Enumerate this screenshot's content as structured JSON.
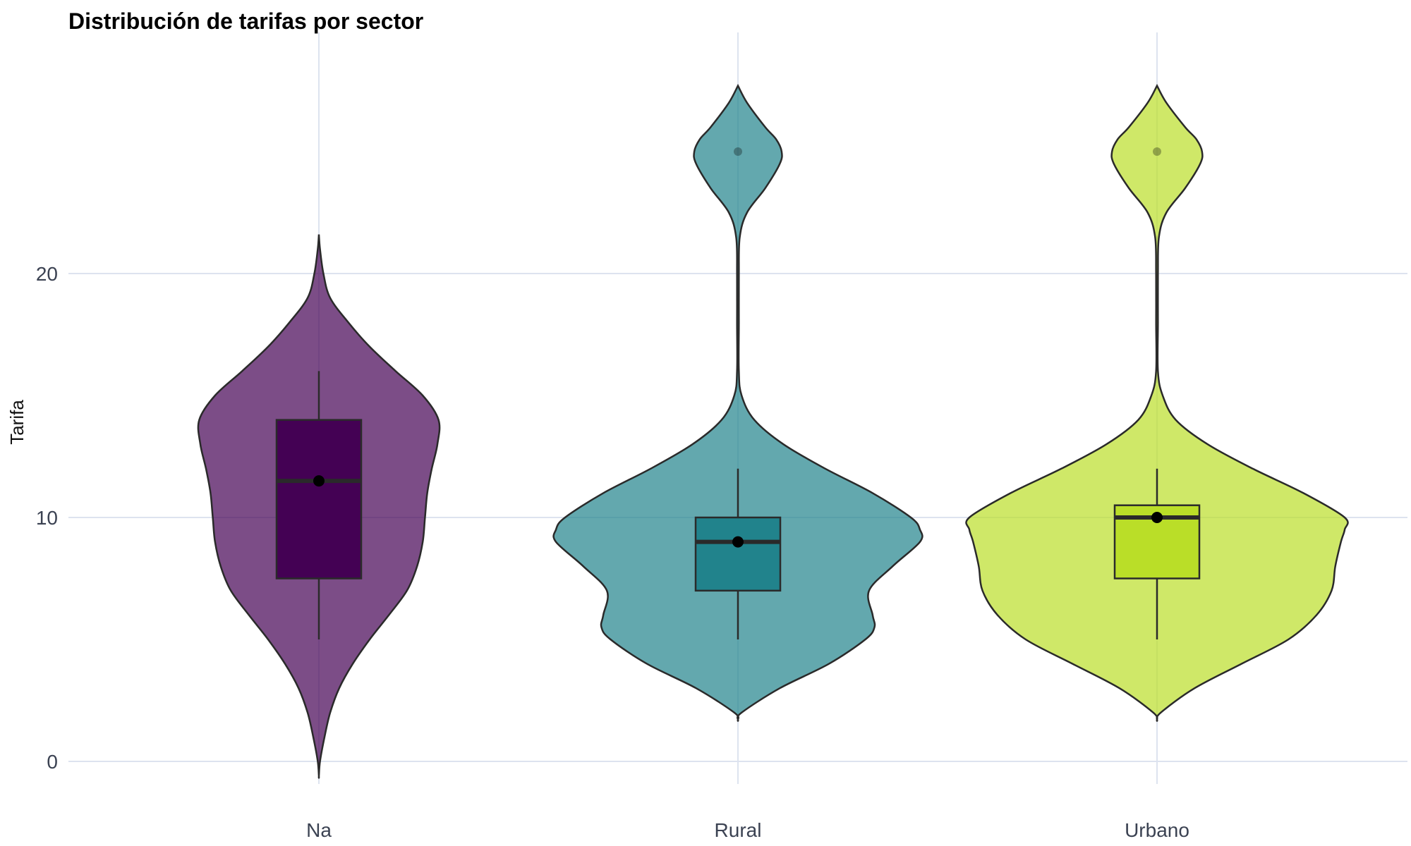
{
  "chart_data": {
    "type": "violin",
    "title": "Distribución de tarifas por sector",
    "xlabel": "",
    "ylabel": "Tarifa",
    "ylim": [
      -1.8,
      29.8
    ],
    "yticks": [
      0,
      10,
      20
    ],
    "grid": true,
    "categories": [
      "Na",
      "Rural",
      "Urbano"
    ],
    "colors": {
      "Na": "#440154",
      "Rural": "#21838c",
      "Urbano": "#bade28"
    },
    "series": [
      {
        "category": "Na",
        "box": {
          "min": 5,
          "q1": 7.5,
          "median": 11.5,
          "q3": 14,
          "max": 16
        },
        "mean": 11.5,
        "outliers": [],
        "violin": {
          "y": [
            -0.6,
            0,
            1,
            2,
            3,
            4,
            5,
            6,
            7,
            8,
            9,
            10,
            11,
            12,
            13,
            14,
            15,
            16,
            17,
            18,
            19,
            20,
            21,
            21.6
          ],
          "width": [
            0,
            0.01,
            0.05,
            0.1,
            0.18,
            0.3,
            0.45,
            0.62,
            0.78,
            0.87,
            0.92,
            0.94,
            0.96,
            1.0,
            1.05,
            1.06,
            0.92,
            0.68,
            0.45,
            0.26,
            0.1,
            0.04,
            0.01,
            0
          ]
        }
      },
      {
        "category": "Rural",
        "box": {
          "min": 5,
          "q1": 7,
          "median": 9,
          "q3": 10,
          "max": 12
        },
        "mean": 9,
        "outliers": [
          25
        ],
        "violin": {
          "y": [
            1.7,
            2,
            3,
            4,
            5,
            5.5,
            6,
            7,
            8,
            9,
            9.5,
            10,
            11,
            12,
            13,
            14,
            15,
            16,
            18,
            20,
            21.5,
            22.5,
            23.5,
            24.5,
            25,
            25.5,
            26,
            27,
            27.7
          ],
          "width": [
            0,
            0.02,
            0.23,
            0.5,
            0.7,
            0.75,
            0.74,
            0.72,
            0.85,
            1.0,
            1.0,
            0.95,
            0.74,
            0.48,
            0.25,
            0.09,
            0.02,
            0.005,
            0.005,
            0.005,
            0.01,
            0.05,
            0.15,
            0.23,
            0.24,
            0.21,
            0.15,
            0.05,
            0
          ]
        }
      },
      {
        "category": "Urbano",
        "box": {
          "min": 5,
          "q1": 7.5,
          "median": 10,
          "q3": 10.5,
          "max": 12
        },
        "mean": 10,
        "outliers": [
          25
        ],
        "violin": {
          "y": [
            1.7,
            2,
            3,
            4,
            5,
            6,
            7,
            8,
            9,
            9.5,
            10,
            11,
            12,
            13,
            14,
            15,
            16,
            18,
            20,
            21.5,
            22.5,
            23.5,
            24.5,
            25,
            25.5,
            26,
            27,
            27.7
          ],
          "width": [
            0,
            0.02,
            0.2,
            0.45,
            0.7,
            0.85,
            0.93,
            0.95,
            0.98,
            1.0,
            1.0,
            0.78,
            0.51,
            0.27,
            0.1,
            0.03,
            0.005,
            0.005,
            0.005,
            0.01,
            0.05,
            0.15,
            0.23,
            0.24,
            0.21,
            0.15,
            0.05,
            0
          ]
        }
      }
    ]
  }
}
